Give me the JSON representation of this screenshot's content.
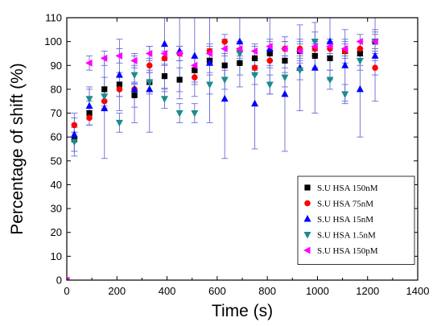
{
  "chart_data": {
    "type": "scatter",
    "xlabel": "Time (s)",
    "ylabel": "Percentage of shift (%)",
    "xlim": [
      0,
      1400
    ],
    "ylim": [
      0,
      110
    ],
    "xticks": [
      0,
      200,
      400,
      600,
      800,
      1000,
      1200,
      1400
    ],
    "yticks": [
      0,
      10,
      20,
      30,
      40,
      50,
      60,
      70,
      80,
      90,
      100,
      110
    ],
    "grid": false,
    "legend_position": "bottom-right",
    "error_bar_color": "#6a6ad8",
    "series": [
      {
        "name": "S.U HSA 150nM",
        "marker": "square",
        "color": "#000000",
        "x": [
          30,
          90,
          150,
          210,
          270,
          330,
          390,
          450,
          510,
          570,
          630,
          690,
          750,
          810,
          870,
          930,
          990,
          1050,
          1110,
          1170,
          1230
        ],
        "y": [
          59,
          70,
          80,
          82,
          77.5,
          83,
          85.5,
          84,
          88,
          92,
          90,
          91,
          93,
          95,
          92,
          96,
          94,
          93,
          96,
          95,
          100
        ],
        "err": [
          5,
          5,
          5,
          5,
          5,
          5,
          5,
          5,
          5,
          5,
          5,
          5,
          5,
          5,
          5,
          5,
          5,
          5,
          5,
          5,
          5
        ]
      },
      {
        "name": "S.U HSA 75nM",
        "marker": "circle",
        "color": "#ff0000",
        "x": [
          30,
          90,
          150,
          210,
          270,
          330,
          390,
          450,
          510,
          570,
          630,
          690,
          750,
          810,
          870,
          930,
          990,
          1050,
          1110,
          1170,
          1230
        ],
        "y": [
          65,
          68,
          75,
          80,
          80,
          90,
          93,
          95,
          85,
          96,
          100,
          96,
          89,
          92,
          97,
          97,
          97,
          97,
          96,
          97,
          89
        ],
        "err": [
          3,
          3,
          3,
          3,
          3,
          3,
          3,
          3,
          3,
          3,
          3,
          3,
          3,
          3,
          3,
          3,
          3,
          3,
          3,
          3,
          3
        ]
      },
      {
        "name": "S.U HSA 15nM",
        "marker": "triangle-up",
        "color": "#0000ff",
        "x": [
          30,
          90,
          150,
          210,
          270,
          330,
          390,
          450,
          510,
          570,
          630,
          690,
          750,
          810,
          870,
          930,
          990,
          1050,
          1110,
          1170,
          1230
        ],
        "y": [
          61,
          73,
          72,
          86,
          80,
          80,
          99,
          96,
          94,
          91,
          76,
          100,
          74,
          97,
          78,
          89,
          89,
          100,
          90,
          80,
          94
        ],
        "err": [
          9,
          8,
          21,
          15,
          14,
          18,
          20,
          20,
          17,
          25,
          25,
          19,
          19,
          19,
          24,
          18,
          19,
          16,
          15,
          20,
          19
        ]
      },
      {
        "name": "S.U HSA 1.5nM",
        "marker": "triangle-down",
        "color": "#1a8c8c",
        "x": [
          30,
          90,
          150,
          210,
          270,
          330,
          390,
          450,
          510,
          570,
          630,
          690,
          750,
          810,
          870,
          930,
          990,
          1050,
          1110,
          1170,
          1230
        ],
        "y": [
          58,
          76,
          77,
          66,
          86,
          83,
          76,
          70,
          70,
          82,
          84,
          95,
          86,
          82,
          85,
          88,
          100,
          84,
          78,
          92,
          100
        ],
        "err": [
          4,
          4,
          4,
          4,
          4,
          4,
          4,
          4,
          4,
          4,
          4,
          4,
          4,
          4,
          4,
          4,
          4,
          4,
          4,
          4,
          4
        ]
      },
      {
        "name": "S.U HSA 150pM",
        "marker": "triangle-left",
        "color": "#ff00ff",
        "x": [
          0,
          90,
          150,
          210,
          270,
          330,
          390,
          450,
          510,
          570,
          630,
          690,
          750,
          810,
          870,
          930,
          990,
          1050,
          1110,
          1170,
          1230
        ],
        "y": [
          0,
          91,
          93,
          94,
          92,
          95,
          95,
          95,
          90,
          95,
          97,
          97,
          96,
          98,
          97,
          96,
          98,
          98,
          97,
          100,
          100
        ],
        "err": [
          0,
          3,
          3,
          3,
          3,
          3,
          3,
          3,
          3,
          3,
          3,
          3,
          3,
          3,
          3,
          3,
          3,
          3,
          3,
          3,
          3
        ]
      }
    ]
  }
}
